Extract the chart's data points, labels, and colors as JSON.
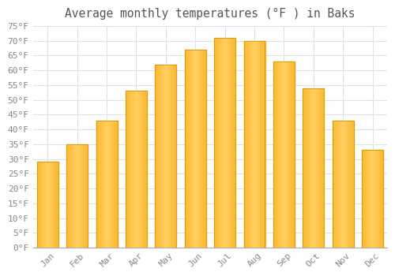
{
  "title": "Average monthly temperatures (°F ) in Baks",
  "months": [
    "Jan",
    "Feb",
    "Mar",
    "Apr",
    "May",
    "Jun",
    "Jul",
    "Aug",
    "Sep",
    "Oct",
    "Nov",
    "Dec"
  ],
  "values": [
    29,
    35,
    43,
    53,
    62,
    67,
    71,
    70,
    63,
    54,
    43,
    33
  ],
  "bar_color_center": "#FFD060",
  "bar_color_edge": "#F5A000",
  "bar_edge_color": "#C89000",
  "background_color": "#FFFFFF",
  "grid_color": "#E0E0E8",
  "text_color": "#888888",
  "title_color": "#555555",
  "ylim": [
    0,
    75
  ],
  "ytick_step": 5,
  "title_fontsize": 10.5,
  "tick_fontsize": 8
}
